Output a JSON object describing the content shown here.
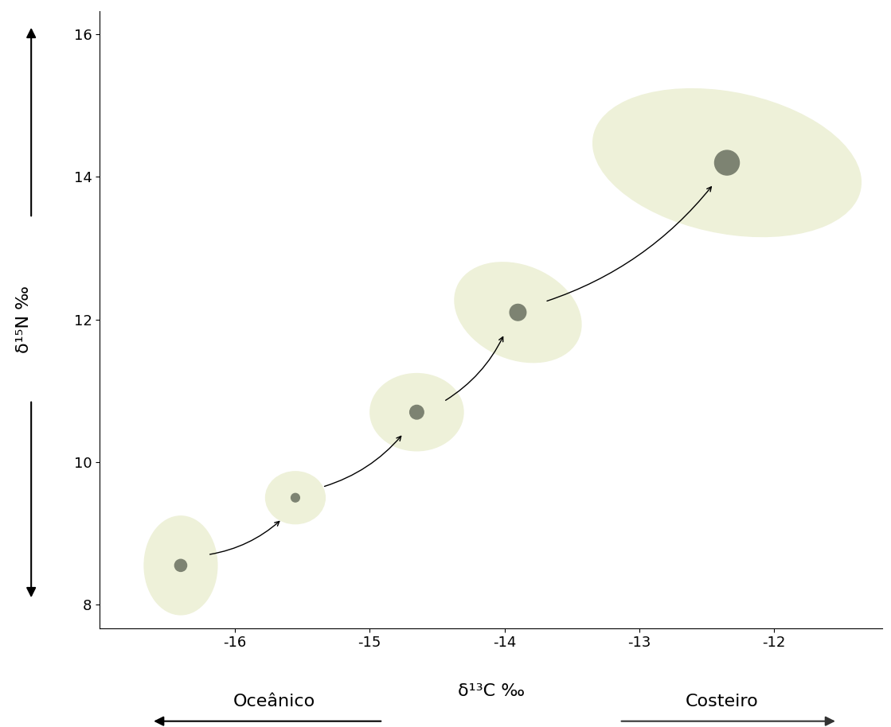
{
  "chart_data": {
    "type": "scatter",
    "x_label": "δ¹³C ‰",
    "y_label": "δ¹⁵N ‰",
    "x": [
      -16.4,
      -15.55,
      -14.65,
      -13.9,
      -12.35
    ],
    "values": [
      8.55,
      9.5,
      10.7,
      12.1,
      14.2
    ],
    "color": "#7d8372",
    "marker": "o",
    "xlim": [
      -17.0,
      -11.2
    ],
    "ylim": [
      7.67,
      16.33
    ],
    "xticks": [
      -16,
      -15,
      -14,
      -13,
      -12
    ],
    "yticks": [
      8,
      10,
      12,
      14,
      16
    ],
    "grid": false,
    "annotations": [
      "Oceânico",
      "Costeiro"
    ]
  }
}
